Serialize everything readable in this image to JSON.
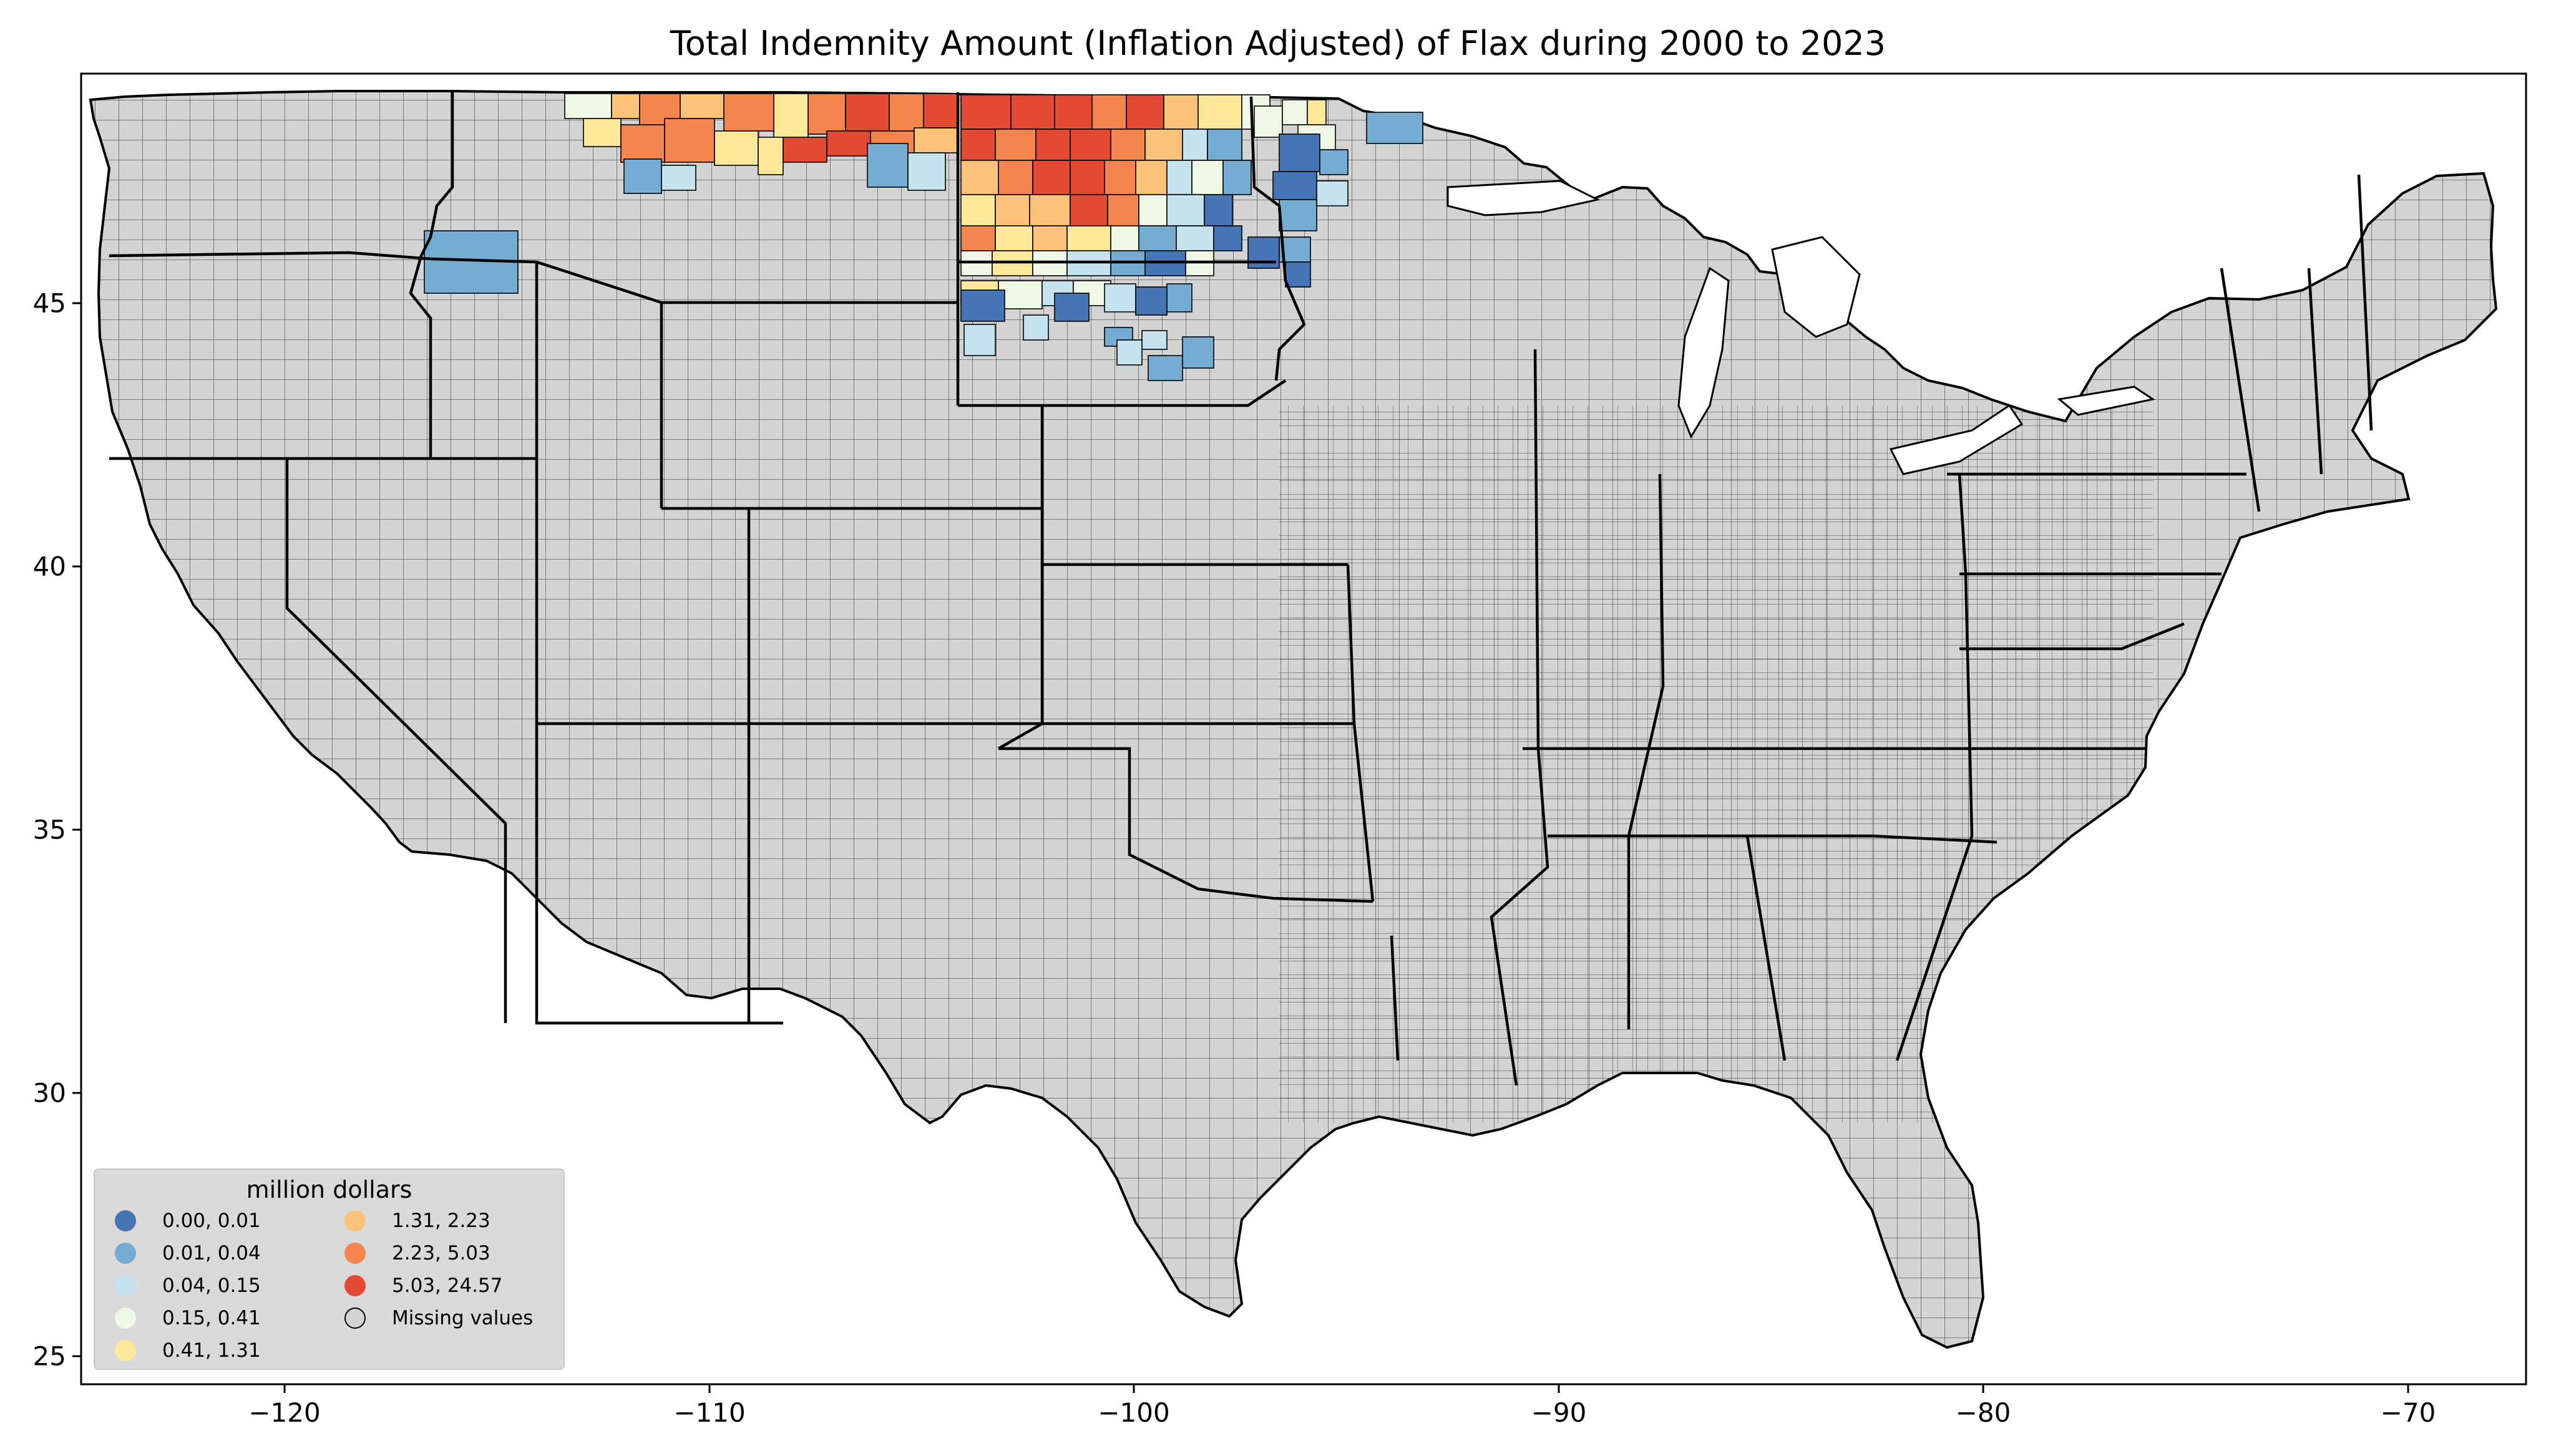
{
  "title": "Total Indemnity Amount  (Inflation Adjusted) of Flax during 2000 to 2023",
  "axes": {
    "x_ticks": [
      "−120",
      "−110",
      "−100",
      "−90",
      "−80",
      "−70"
    ],
    "y_ticks": [
      "45",
      "40",
      "35",
      "30",
      "25"
    ]
  },
  "legend": {
    "title": "million dollars",
    "items": [
      {
        "label": "0.00,  0.01",
        "color": "#4575b4"
      },
      {
        "label": "0.01,  0.04",
        "color": "#74add1"
      },
      {
        "label": "0.04,  0.15",
        "color": "#c5e3ef"
      },
      {
        "label": "0.15,  0.41",
        "color": "#eef8e4"
      },
      {
        "label": "0.41,  1.31",
        "color": "#fee99a"
      },
      {
        "label": "1.31,  2.23",
        "color": "#fdc27a"
      },
      {
        "label": "2.23,  5.03",
        "color": "#f4854f"
      },
      {
        "label": "5.03, 24.57",
        "color": "#e34a33"
      },
      {
        "label": "Missing values",
        "color": "#d3d3d3"
      }
    ]
  },
  "colors": {
    "land": "#d3d3d3",
    "county_border": "#000000",
    "state_border": "#000000"
  }
}
